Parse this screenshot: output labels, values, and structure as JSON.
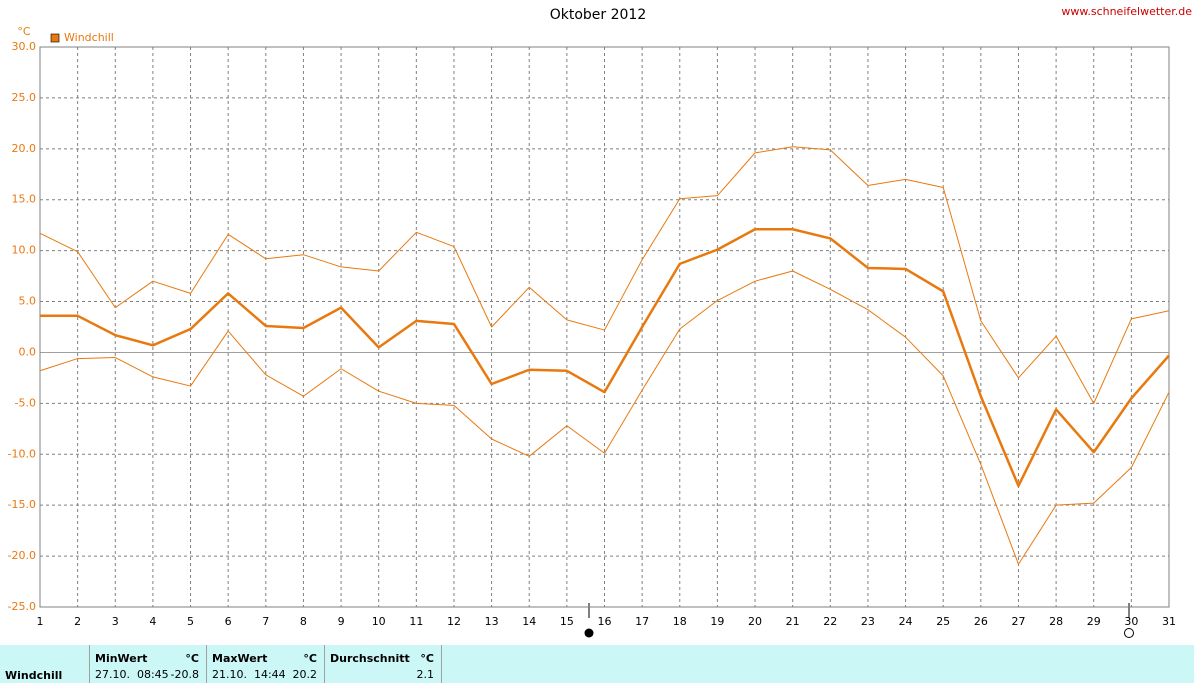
{
  "chart_data": {
    "type": "line",
    "title": "Oktober 2012",
    "source": "www.schneifelwetter.de",
    "y_unit": "°C",
    "categories": [
      "1",
      "2",
      "3",
      "4",
      "5",
      "6",
      "7",
      "8",
      "9",
      "10",
      "11",
      "12",
      "13",
      "14",
      "15",
      "16",
      "17",
      "18",
      "19",
      "20",
      "21",
      "22",
      "23",
      "24",
      "25",
      "26",
      "27",
      "28",
      "29",
      "30",
      "31"
    ],
    "series": [
      {
        "name": "Windchill",
        "color": "#e8790f",
        "width": 2.5,
        "values": [
          3.6,
          3.6,
          1.7,
          0.7,
          2.3,
          5.8,
          2.6,
          2.4,
          4.4,
          0.5,
          3.1,
          2.8,
          -3.1,
          -1.7,
          -1.8,
          -3.9,
          2.5,
          8.7,
          10.1,
          12.1,
          12.1,
          11.2,
          8.3,
          8.2,
          6.0,
          -4.3,
          -13.1,
          -5.6,
          -9.8,
          -4.5,
          -0.3
        ]
      },
      {
        "color": "#e8790f",
        "width": 1,
        "values": [
          11.7,
          9.9,
          4.4,
          7.0,
          5.8,
          11.6,
          9.2,
          9.6,
          8.4,
          8.0,
          11.8,
          10.4,
          2.5,
          6.4,
          3.2,
          2.2,
          9.1,
          15.1,
          15.4,
          19.6,
          20.2,
          19.9,
          16.4,
          17.0,
          16.2,
          3.1,
          -2.5,
          1.6,
          -5.0,
          3.3,
          4.1
        ]
      },
      {
        "color": "#e8790f",
        "width": 1,
        "values": [
          -1.8,
          -0.6,
          -0.5,
          -2.4,
          -3.3,
          2.1,
          -2.2,
          -4.3,
          -1.6,
          -3.8,
          -5.0,
          -5.2,
          -8.5,
          -10.2,
          -7.2,
          -9.9,
          -3.7,
          2.3,
          5.1,
          7.0,
          8.0,
          6.2,
          4.2,
          1.5,
          -2.3,
          -11.0,
          -20.8,
          -15.0,
          -14.8,
          -11.3,
          -3.9
        ]
      }
    ],
    "ylim": [
      -25,
      30
    ],
    "yticks": [
      {
        "value": -25,
        "label": "-25.0"
      },
      {
        "value": -20,
        "label": "-20.0"
      },
      {
        "value": -15,
        "label": "-15.0"
      },
      {
        "value": -10,
        "label": "-10.0"
      },
      {
        "value": -5,
        "label": "-5.0"
      },
      {
        "value": 0,
        "label": "0.0"
      },
      {
        "value": 5,
        "label": "5.0"
      },
      {
        "value": 10,
        "label": "10.0"
      },
      {
        "value": 15,
        "label": "15.0"
      },
      {
        "value": 20,
        "label": "20.0"
      },
      {
        "value": 25,
        "label": "25.0"
      },
      {
        "value": 30,
        "label": "30.0"
      }
    ],
    "grid": true,
    "legend": "top-left"
  },
  "table": {
    "label": "Windchill",
    "columns": [
      {
        "header": "MinWert",
        "unit": "°C",
        "time": "27.10.  08:45",
        "value": "-20.8"
      },
      {
        "header": "MaxWert",
        "unit": "°C",
        "time": "21.10.  14:44",
        "value": "20.2"
      },
      {
        "header": "Durchschnitt",
        "unit": "°C",
        "value": "2.1"
      }
    ]
  }
}
